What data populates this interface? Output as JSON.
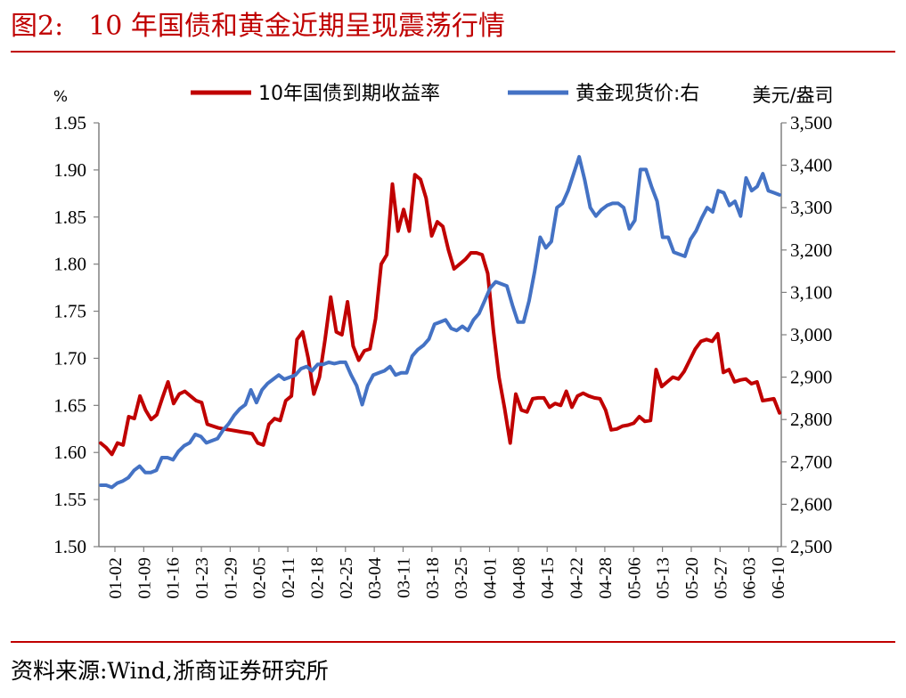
{
  "figure": {
    "label": "图2:",
    "title": "10 年国债和黄金近期呈现震荡行情",
    "source": "资料来源:Wind,浙商证券研究所"
  },
  "colors": {
    "title_red": "#c00000",
    "bond": "#c00000",
    "gold": "#4472c4",
    "axis": "#808080"
  },
  "chart_data": {
    "type": "line",
    "x_ticks": [
      "01-02",
      "01-09",
      "01-16",
      "01-23",
      "01-29",
      "02-05",
      "02-11",
      "02-18",
      "02-25",
      "03-04",
      "03-11",
      "03-18",
      "03-25",
      "04-01",
      "04-08",
      "04-15",
      "04-22",
      "04-28",
      "05-06",
      "05-13",
      "05-20",
      "05-27",
      "06-03",
      "06-10"
    ],
    "y_left": {
      "label": "%",
      "min": 1.5,
      "max": 1.95,
      "step": 0.05,
      "ticks": [
        "1.95",
        "1.90",
        "1.85",
        "1.80",
        "1.75",
        "1.70",
        "1.65",
        "1.60",
        "1.55",
        "1.50"
      ]
    },
    "y_right": {
      "label": "美元/盎司",
      "min": 2500,
      "max": 3500,
      "step": 100,
      "ticks": [
        "3,500",
        "3,400",
        "3,300",
        "3,200",
        "3,100",
        "3,000",
        "2,900",
        "2,800",
        "2,700",
        "2,600",
        "2,500"
      ]
    },
    "legend": {
      "placement": "top-center"
    },
    "series": [
      {
        "name": "10年国债到期收益率",
        "axis": "left",
        "color": "#c00000",
        "values": [
          1.61,
          1.605,
          1.598,
          1.61,
          1.608,
          1.638,
          1.636,
          1.66,
          1.645,
          1.635,
          1.64,
          1.658,
          1.675,
          1.652,
          1.662,
          1.665,
          1.66,
          1.655,
          1.653,
          1.63,
          1.628,
          1.626,
          1.625,
          1.624,
          1.623,
          1.622,
          1.621,
          1.62,
          1.61,
          1.608,
          1.63,
          1.636,
          1.634,
          1.655,
          1.66,
          1.72,
          1.728,
          1.7,
          1.662,
          1.68,
          1.72,
          1.765,
          1.728,
          1.725,
          1.76,
          1.713,
          1.698,
          1.708,
          1.71,
          1.742,
          1.8,
          1.81,
          1.885,
          1.835,
          1.858,
          1.835,
          1.895,
          1.89,
          1.87,
          1.83,
          1.845,
          1.84,
          1.815,
          1.795,
          1.8,
          1.805,
          1.812,
          1.812,
          1.81,
          1.79,
          1.73,
          1.68,
          1.647,
          1.61,
          1.662,
          1.645,
          1.643,
          1.657,
          1.658,
          1.658,
          1.648,
          1.652,
          1.65,
          1.665,
          1.648,
          1.66,
          1.663,
          1.66,
          1.658,
          1.657,
          1.645,
          1.624,
          1.625,
          1.628,
          1.629,
          1.631,
          1.638,
          1.633,
          1.634,
          1.688,
          1.67,
          1.675,
          1.68,
          1.678,
          1.686,
          1.698,
          1.71,
          1.718,
          1.72,
          1.718,
          1.726,
          1.685,
          1.688,
          1.675,
          1.677,
          1.678,
          1.673,
          1.675,
          1.655,
          1.656,
          1.657,
          1.642
        ]
      },
      {
        "name": "黄金现货价:右",
        "axis": "right",
        "color": "#4472c4",
        "values": [
          2645,
          2645,
          2640,
          2650,
          2655,
          2663,
          2680,
          2690,
          2675,
          2675,
          2680,
          2710,
          2710,
          2705,
          2725,
          2738,
          2745,
          2765,
          2760,
          2745,
          2750,
          2755,
          2775,
          2790,
          2810,
          2825,
          2835,
          2870,
          2840,
          2870,
          2885,
          2895,
          2905,
          2895,
          2900,
          2905,
          2920,
          2925,
          2915,
          2930,
          2930,
          2935,
          2932,
          2935,
          2935,
          2905,
          2880,
          2835,
          2880,
          2905,
          2910,
          2915,
          2925,
          2905,
          2910,
          2910,
          2950,
          2965,
          2975,
          2990,
          3025,
          3030,
          3035,
          3015,
          3010,
          3020,
          3010,
          3035,
          3050,
          3080,
          3110,
          3125,
          3120,
          3115,
          3070,
          3030,
          3030,
          3080,
          3150,
          3230,
          3205,
          3220,
          3300,
          3310,
          3340,
          3380,
          3420,
          3365,
          3300,
          3280,
          3295,
          3305,
          3310,
          3310,
          3300,
          3250,
          3270,
          3390,
          3390,
          3350,
          3315,
          3230,
          3230,
          3195,
          3190,
          3185,
          3225,
          3245,
          3275,
          3300,
          3290,
          3340,
          3335,
          3305,
          3315,
          3280,
          3370,
          3340,
          3350,
          3380,
          3340,
          3335,
          3330
        ]
      }
    ]
  }
}
